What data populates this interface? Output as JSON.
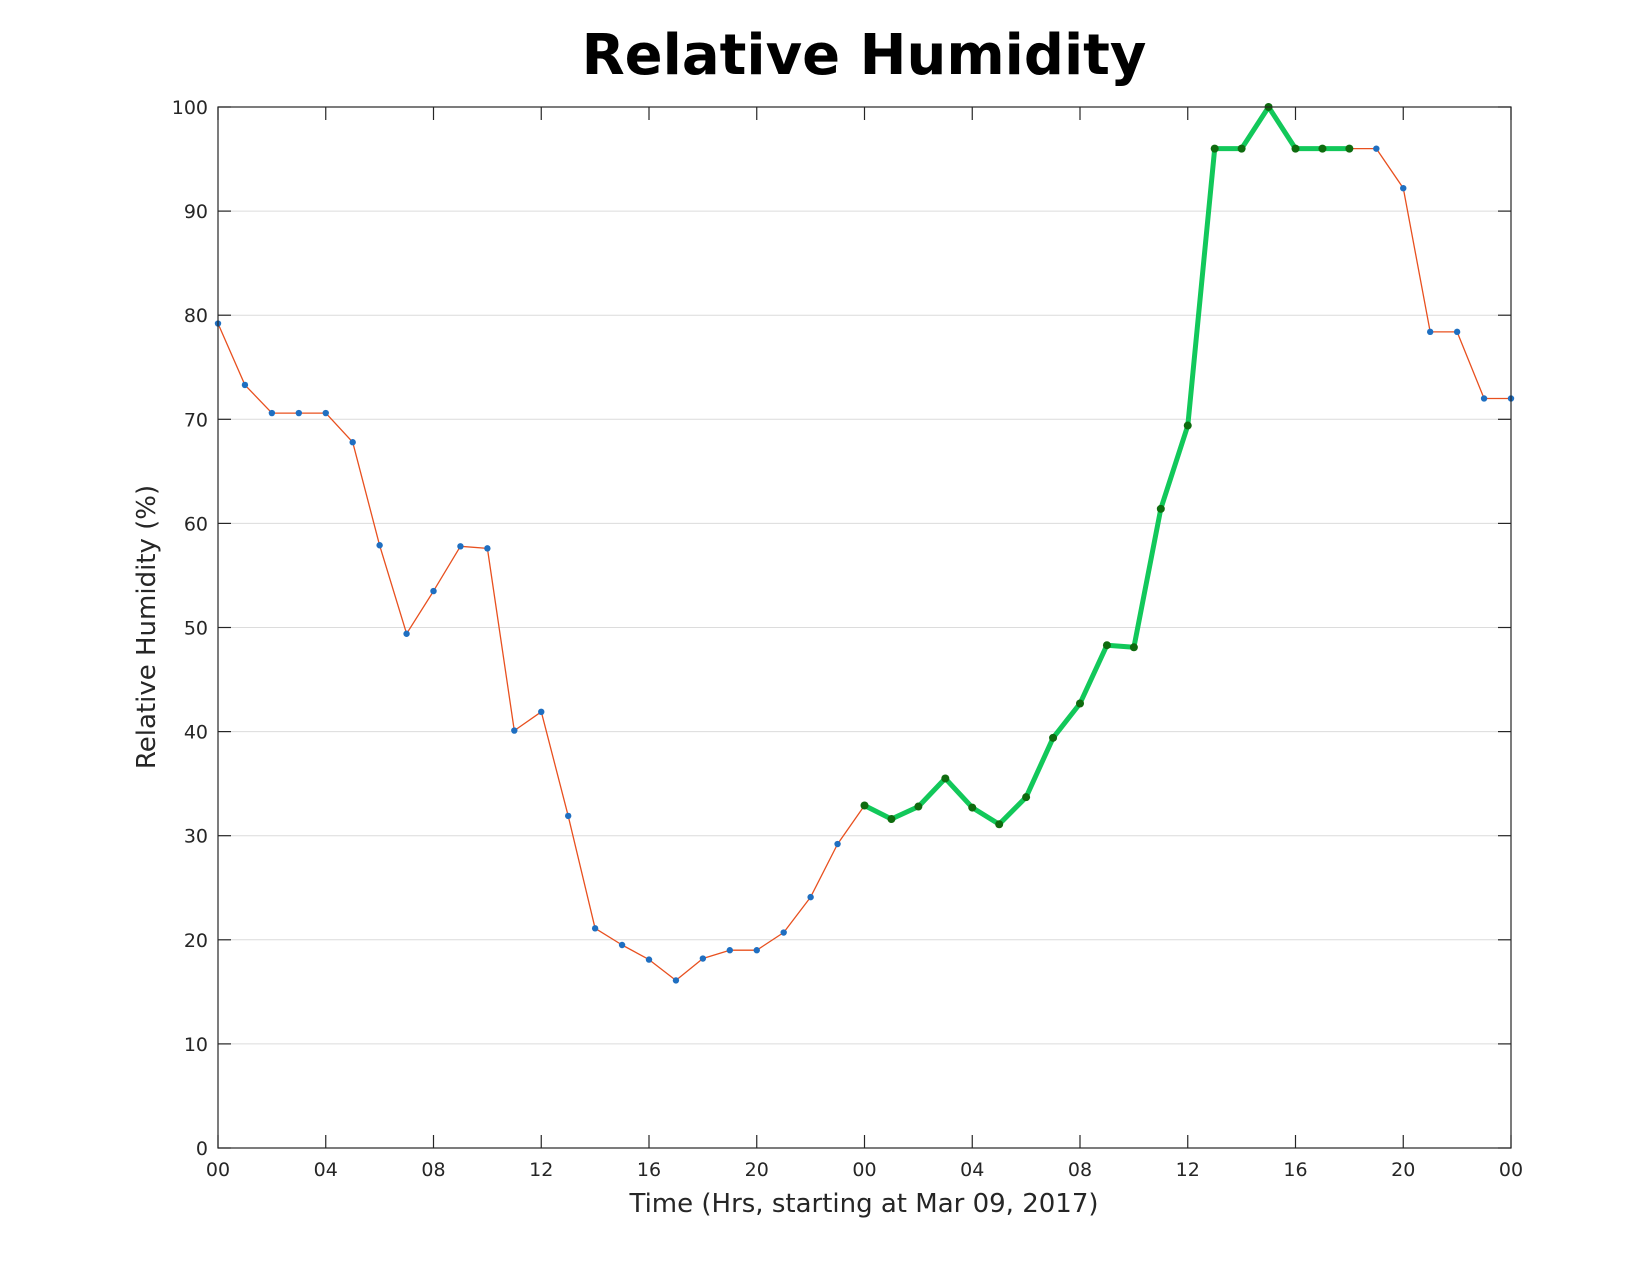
{
  "chart_data": {
    "type": "line",
    "title": "Relative Humidity",
    "xlabel": "Time (Hrs, starting at Mar 09, 2017)",
    "ylabel": "Relative Humidity (%)",
    "ylim": [
      0,
      100
    ],
    "yticks": [
      "0",
      "10",
      "20",
      "30",
      "40",
      "50",
      "60",
      "70",
      "80",
      "90",
      "100"
    ],
    "xlim": [
      0,
      48
    ],
    "xtick_hours": [
      0,
      4,
      8,
      12,
      16,
      20,
      24,
      28,
      32,
      36,
      40,
      44,
      48
    ],
    "xtick_labels": [
      "00",
      "04",
      "08",
      "12",
      "16",
      "20",
      "00",
      "04",
      "08",
      "12",
      "16",
      "20",
      "00"
    ],
    "grid": true,
    "series": [
      {
        "color": "#e8501f",
        "marker_color": "#1f6fc1",
        "x": [
          0,
          1,
          2,
          3,
          4,
          5,
          6,
          7,
          8,
          9,
          10,
          11,
          12,
          13,
          14,
          15,
          16,
          17,
          18,
          19,
          20,
          21,
          22,
          23,
          24,
          25,
          26,
          27,
          28,
          29,
          30,
          31,
          32,
          33,
          34,
          35,
          36,
          37,
          38,
          39,
          40,
          41,
          42,
          43,
          44,
          45,
          46,
          47,
          48
        ],
        "values": [
          79.2,
          73.3,
          70.6,
          70.6,
          70.6,
          67.8,
          57.9,
          49.4,
          53.5,
          57.8,
          57.6,
          40.1,
          41.9,
          31.9,
          21.1,
          19.5,
          18.1,
          16.1,
          18.2,
          19.0,
          19.0,
          20.7,
          24.1,
          29.2,
          32.9,
          31.6,
          32.8,
          35.5,
          32.7,
          31.1,
          33.7,
          39.4,
          42.7,
          48.3,
          48.1,
          61.4,
          69.4,
          96.0,
          96.0,
          100.0,
          96.0,
          96.0,
          96.0,
          96.0,
          92.2,
          78.4,
          78.4,
          72.0,
          72.0
        ]
      },
      {
        "color": "#12c85a",
        "marker_color": "#0e6b0e",
        "x": [
          24,
          25,
          26,
          27,
          28,
          29,
          30,
          31,
          32,
          33,
          34,
          35,
          36,
          37,
          38,
          39,
          40,
          41,
          42
        ],
        "values": [
          32.9,
          31.6,
          32.8,
          35.5,
          32.7,
          31.1,
          33.7,
          39.4,
          42.7,
          48.3,
          48.1,
          61.4,
          69.4,
          96.0,
          96.0,
          100.0,
          96.0,
          96.0,
          96.0
        ]
      }
    ]
  }
}
